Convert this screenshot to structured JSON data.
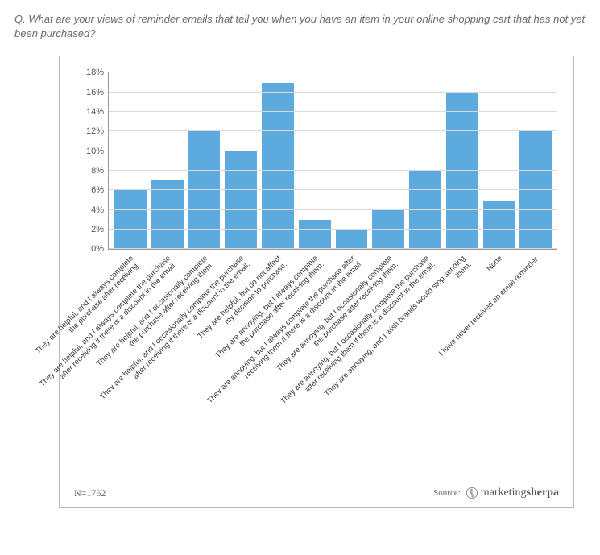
{
  "question": "Q. What are your views of reminder emails that tell you when you have an item in your online shopping cart that has not yet been purchased?",
  "chart": {
    "type": "bar",
    "ylim": [
      0,
      18
    ],
    "ytick_step": 2,
    "ytick_suffix": "%",
    "bar_color": "#5caade",
    "gridline_color": "#d9d9d9",
    "axis_color": "#999999",
    "label_color": "#333333",
    "label_fontsize": 9.5,
    "tick_fontsize": 11,
    "bars": [
      {
        "value": 6,
        "label": "They are helpful, and I always complete\nthe purchase after receiving."
      },
      {
        "value": 7,
        "label": "They are helpful, and I always complete the purchase\nafter receiving if there is a discount in the email."
      },
      {
        "value": 12,
        "label": "They are helpful, and I occasionally complete\nthe purchase after receiving them."
      },
      {
        "value": 10,
        "label": "They are helpful, and I occasionally complete the purchase\nafter receiving if there is a discount in the email."
      },
      {
        "value": 17,
        "label": "They are helpful, but do not affect\nmy decision to purchase."
      },
      {
        "value": 3,
        "label": "They are annoying, but I always complete\nthe purchase after receiving them."
      },
      {
        "value": 2,
        "label": "They are annoying, but I always complete the purchase after\nreceiving them if there is a discount in the email"
      },
      {
        "value": 4,
        "label": "They are annoying, but I occasionally complete\nthe purchase after receiving them."
      },
      {
        "value": 8,
        "label": "They are annoying, but I occasionally complete the purchase\nafter receiving them if there is a discount in the email."
      },
      {
        "value": 16,
        "label": "They are annoying, and I wish brands would stop sending them."
      },
      {
        "value": 5,
        "label": "None"
      },
      {
        "value": 12,
        "label": "I have never received an email reminder."
      }
    ]
  },
  "footer": {
    "sample": "N=1762",
    "source_prefix": "Source:",
    "brand_light": "marketing",
    "brand_bold": "sherpa"
  }
}
